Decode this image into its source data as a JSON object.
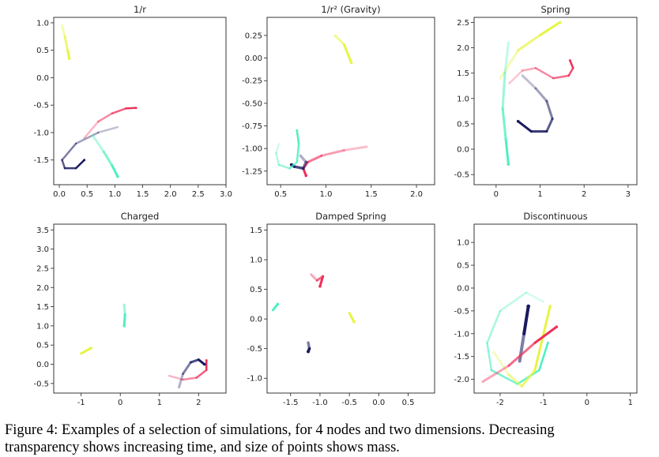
{
  "caption": {
    "line1": "Figure 4:  Examples of a selection of simulations, for 4 nodes and two dimensions.  Decreasing",
    "line2": "transparency shows increasing time, and size of points shows mass."
  },
  "chart_data": [
    {
      "type": "line",
      "title": "1/r",
      "xlim": [
        -0.1,
        3.0
      ],
      "ylim": [
        -1.95,
        1.1
      ],
      "xticks": [
        "0.0",
        "0.5",
        "1.0",
        "1.5",
        "2.0",
        "2.5",
        "3.0"
      ],
      "yticks": [
        "1.0",
        "0.5",
        "0.0",
        "-0.5",
        "-1.0",
        "-1.5"
      ],
      "series": [
        {
          "color": "#e6f542",
          "width": 3,
          "x": [
            0.05,
            0.1,
            0.15,
            0.18
          ],
          "y": [
            0.95,
            0.75,
            0.5,
            0.35
          ]
        },
        {
          "color": "#f0305a",
          "width": 2.5,
          "x": [
            0.45,
            0.7,
            0.95,
            1.2,
            1.38
          ],
          "y": [
            -1.1,
            -0.8,
            -0.65,
            -0.56,
            -0.55
          ]
        },
        {
          "color": "#1a1a60",
          "width": 2.5,
          "x": [
            1.05,
            0.7,
            0.3,
            0.05,
            0.1,
            0.3,
            0.45
          ],
          "y": [
            -0.9,
            -1.0,
            -1.2,
            -1.5,
            -1.65,
            -1.65,
            -1.5
          ]
        },
        {
          "color": "#4ef0c0",
          "width": 3,
          "x": [
            0.6,
            0.8,
            0.95,
            1.05
          ],
          "y": [
            -1.05,
            -1.35,
            -1.6,
            -1.8
          ]
        }
      ]
    },
    {
      "type": "line",
      "title": "1/r² (Gravity)",
      "xlim": [
        0.35,
        2.2
      ],
      "ylim": [
        -1.4,
        0.45
      ],
      "xticks": [
        "0.5",
        "1.0",
        "1.5",
        "2.0"
      ],
      "yticks": [
        "0.25",
        "0.00",
        "-0.25",
        "-0.50",
        "-0.75",
        "-1.00",
        "-1.25"
      ],
      "series": [
        {
          "color": "#e6f542",
          "width": 3,
          "x": [
            1.1,
            1.2,
            1.28
          ],
          "y": [
            0.25,
            0.15,
            -0.05
          ]
        },
        {
          "color": "#f0305a",
          "width": 3,
          "x": [
            1.45,
            1.2,
            0.95,
            0.8,
            0.75,
            0.78
          ],
          "y": [
            -0.98,
            -1.02,
            -1.08,
            -1.15,
            -1.22,
            -1.3
          ]
        },
        {
          "color": "#1a1a60",
          "width": 3.5,
          "x": [
            0.72,
            0.78,
            0.75,
            0.65,
            0.62
          ],
          "y": [
            -1.08,
            -1.15,
            -1.22,
            -1.2,
            -1.18
          ]
        },
        {
          "color": "#4ef0c0",
          "width": 2.5,
          "x": [
            0.48,
            0.45,
            0.48,
            0.6,
            0.68,
            0.7,
            0.68
          ],
          "y": [
            -0.95,
            -1.05,
            -1.18,
            -1.22,
            -1.15,
            -0.95,
            -0.8
          ]
        }
      ]
    },
    {
      "type": "line",
      "title": "Spring",
      "xlim": [
        -0.5,
        3.2
      ],
      "ylim": [
        -0.7,
        2.6
      ],
      "xticks": [
        "0",
        "1",
        "2",
        "3"
      ],
      "yticks": [
        "2.5",
        "2.0",
        "1.5",
        "1.0",
        "0.5",
        "0.0",
        "-0.5"
      ],
      "series": [
        {
          "color": "#e6f542",
          "width": 3,
          "x": [
            0.1,
            0.5,
            1.0,
            1.45
          ],
          "y": [
            1.4,
            1.95,
            2.25,
            2.5
          ]
        },
        {
          "color": "#f0305a",
          "width": 2.5,
          "x": [
            0.3,
            0.6,
            0.9,
            1.3,
            1.65,
            1.75,
            1.68
          ],
          "y": [
            1.3,
            1.55,
            1.6,
            1.4,
            1.45,
            1.6,
            1.75
          ]
        },
        {
          "color": "#1a1a60",
          "width": 3,
          "x": [
            0.6,
            0.9,
            1.15,
            1.28,
            1.15,
            0.8,
            0.5
          ],
          "y": [
            1.45,
            1.2,
            0.95,
            0.6,
            0.35,
            0.35,
            0.55
          ]
        },
        {
          "color": "#4ef0c0",
          "width": 3,
          "x": [
            0.28,
            0.2,
            0.15,
            0.22,
            0.28
          ],
          "y": [
            2.1,
            1.5,
            0.8,
            0.2,
            -0.3
          ]
        }
      ]
    },
    {
      "type": "line",
      "title": "Charged",
      "xlim": [
        -1.7,
        2.7
      ],
      "ylim": [
        -0.75,
        3.65
      ],
      "xticks": [
        "-1",
        "0",
        "1",
        "2"
      ],
      "yticks": [
        "3.5",
        "3.0",
        "2.5",
        "2.0",
        "1.5",
        "1.0",
        "0.5",
        "0.0",
        "-0.5"
      ],
      "series": [
        {
          "color": "#e6f542",
          "width": 3,
          "x": [
            -1.0,
            -0.75
          ],
          "y": [
            0.28,
            0.42
          ]
        },
        {
          "color": "#4ef0c0",
          "width": 3,
          "x": [
            0.1,
            0.12,
            0.1
          ],
          "y": [
            1.55,
            1.3,
            1.0
          ]
        },
        {
          "color": "#f0305a",
          "width": 2.5,
          "x": [
            1.25,
            1.6,
            1.95,
            2.2,
            2.2
          ],
          "y": [
            -0.3,
            -0.4,
            -0.35,
            -0.15,
            0.1
          ]
        },
        {
          "color": "#1a1a60",
          "width": 3,
          "x": [
            1.5,
            1.6,
            1.8,
            2.0,
            2.15
          ],
          "y": [
            -0.6,
            -0.25,
            0.05,
            0.12,
            0.0
          ]
        }
      ]
    },
    {
      "type": "line",
      "title": "Damped Spring",
      "xlim": [
        -1.9,
        0.95
      ],
      "ylim": [
        -1.25,
        1.6
      ],
      "xticks": [
        "-1.5",
        "-1.0",
        "-0.5",
        "0.0",
        "0.5"
      ],
      "yticks": [
        "1.5",
        "1.0",
        "0.5",
        "0.0",
        "-0.5",
        "-1.0"
      ],
      "series": [
        {
          "color": "#f0305a",
          "width": 3,
          "x": [
            -1.15,
            -1.05,
            -0.95,
            -1.0
          ],
          "y": [
            0.75,
            0.65,
            0.72,
            0.55
          ]
        },
        {
          "color": "#4ef0c0",
          "width": 3,
          "x": [
            -1.8,
            -1.72
          ],
          "y": [
            0.15,
            0.25
          ]
        },
        {
          "color": "#e6f542",
          "width": 3,
          "x": [
            -0.5,
            -0.42
          ],
          "y": [
            0.1,
            -0.05
          ]
        },
        {
          "color": "#1a1a60",
          "width": 3.5,
          "x": [
            -1.2,
            -1.18,
            -1.2
          ],
          "y": [
            -0.4,
            -0.5,
            -0.55
          ]
        }
      ]
    },
    {
      "type": "line",
      "title": "Discontinuous",
      "xlim": [
        -2.6,
        1.15
      ],
      "ylim": [
        -2.3,
        1.4
      ],
      "xticks": [
        "-2",
        "-1",
        "0",
        "1"
      ],
      "yticks": [
        "1.0",
        "0.5",
        "0.0",
        "-0.5",
        "-1.0",
        "-1.5",
        "-2.0"
      ],
      "series": [
        {
          "color": "#4ef0c0",
          "width": 2.5,
          "x": [
            -1.0,
            -1.4,
            -2.0,
            -2.3,
            -2.2,
            -1.6,
            -1.1,
            -0.9
          ],
          "y": [
            -0.3,
            -0.1,
            -0.5,
            -1.2,
            -1.8,
            -2.1,
            -1.8,
            -1.2
          ]
        },
        {
          "color": "#e6f542",
          "width": 3,
          "x": [
            -2.15,
            -1.8,
            -1.5,
            -1.2,
            -0.85
          ],
          "y": [
            -1.4,
            -1.9,
            -2.15,
            -1.8,
            -0.4
          ]
        },
        {
          "color": "#1a1a60",
          "width": 4,
          "x": [
            -1.55,
            -1.45,
            -1.35
          ],
          "y": [
            -1.6,
            -1.0,
            -0.4
          ]
        },
        {
          "color": "#f0305a",
          "width": 3,
          "x": [
            -2.4,
            -1.8,
            -1.2,
            -0.7
          ],
          "y": [
            -2.05,
            -1.7,
            -1.2,
            -0.85
          ]
        }
      ]
    }
  ]
}
